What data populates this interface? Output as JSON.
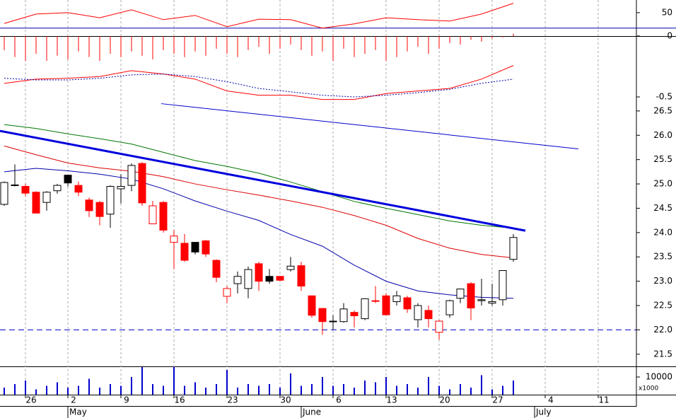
{
  "chart_data": {
    "type": "candlestick",
    "xticks": [
      {
        "value": 2,
        "label": "26"
      },
      {
        "value": 6,
        "label": "2"
      },
      {
        "value": 11,
        "label": "9"
      },
      {
        "value": 16,
        "label": "16"
      },
      {
        "value": 21,
        "label": "23"
      },
      {
        "value": 26,
        "label": "30"
      },
      {
        "value": 31,
        "label": "6"
      },
      {
        "value": 36,
        "label": "13"
      },
      {
        "value": 41,
        "label": "20"
      },
      {
        "value": 46,
        "label": "27"
      },
      {
        "value": 51,
        "label": "4"
      },
      {
        "value": 56,
        "label": "11"
      }
    ],
    "month_ticks": [
      {
        "value": 6,
        "label": "May"
      },
      {
        "value": 28,
        "label": "June"
      },
      {
        "value": 50,
        "label": "July"
      }
    ],
    "oscillator": {
      "ylim": [
        -59,
        77
      ],
      "yticks": [
        50,
        0
      ],
      "line": {
        "color": "#ff0000",
        "x": [
          0,
          3,
          6,
          9,
          12,
          15,
          18,
          21,
          24,
          27,
          30,
          33,
          36,
          39,
          42,
          45,
          48
        ],
        "values": [
          27,
          47,
          50,
          39,
          56,
          35,
          44,
          20,
          36,
          35,
          17,
          26,
          39,
          35,
          32,
          47,
          70
        ]
      },
      "level": {
        "value": 17,
        "color": "#0000aa"
      },
      "histogram": {
        "color": "#ff0000",
        "values": [
          -30,
          -45,
          -53,
          -38,
          -53,
          -42,
          -50,
          -33,
          -45,
          -53,
          -38,
          -45,
          -33,
          -42,
          -50,
          -30,
          -38,
          -45,
          -33,
          -42,
          -27,
          -38,
          -45,
          -30,
          -23,
          -38,
          -27,
          -18,
          -30,
          -42,
          -33,
          -53,
          -27,
          -45,
          -38,
          -30,
          -53,
          -45,
          -33,
          -23,
          -38,
          -27,
          -15,
          -18,
          -8,
          -12,
          -5,
          -3,
          5
        ]
      }
    },
    "macd": {
      "ylim": [
        -0.608,
        -0.108
      ],
      "yticks": [
        -0.5
      ],
      "lines": [
        {
          "color": "#ff0000",
          "style": "solid",
          "x": [
            0,
            3,
            6,
            9,
            12,
            15,
            18,
            21,
            24,
            27,
            30,
            33,
            36,
            39,
            42,
            45,
            48
          ],
          "values": [
            -0.34,
            -0.29,
            -0.28,
            -0.26,
            -0.19,
            -0.23,
            -0.29,
            -0.43,
            -0.48,
            -0.48,
            -0.53,
            -0.53,
            -0.46,
            -0.43,
            -0.4,
            -0.29,
            -0.13
          ]
        },
        {
          "color": "#0000aa",
          "style": "dotted",
          "x": [
            0,
            3,
            6,
            9,
            12,
            15,
            18,
            21,
            24,
            27,
            30,
            33,
            36,
            39,
            42,
            45,
            48
          ],
          "values": [
            -0.28,
            -0.3,
            -0.3,
            -0.28,
            -0.24,
            -0.23,
            -0.26,
            -0.32,
            -0.4,
            -0.44,
            -0.48,
            -0.5,
            -0.48,
            -0.45,
            -0.41,
            -0.34,
            -0.29
          ]
        }
      ]
    },
    "price": {
      "ylim": [
        21.25,
        26.6
      ],
      "yticks": [
        {
          "value": 26.5,
          "label": "26.5"
        },
        {
          "value": 26.0,
          "label": "26.0"
        },
        {
          "value": 25.5,
          "label": "25.5"
        },
        {
          "value": 25.0,
          "label": "25.0"
        },
        {
          "value": 24.5,
          "label": "24.5"
        },
        {
          "value": 24.0,
          "label": "24.0"
        },
        {
          "value": 23.5,
          "label": "23.5"
        },
        {
          "value": 23.0,
          "label": "23.0"
        },
        {
          "value": 22.5,
          "label": "22.5"
        },
        {
          "value": 22.0,
          "label": "22.0"
        },
        {
          "value": 21.5,
          "label": "21.5"
        }
      ],
      "candles": {
        "open": [
          24.58,
          24.97,
          24.95,
          24.83,
          24.62,
          24.86,
          25.02,
          24.97,
          24.67,
          24.62,
          24.38,
          24.9,
          24.97,
          25.42,
          24.55,
          24.62,
          23.93,
          23.78,
          23.6,
          23.83,
          23.43,
          22.85,
          22.95,
          22.85,
          23.36,
          23.0,
          23.1,
          23.24,
          23.32,
          22.7,
          22.44,
          22.17,
          22.17,
          22.36,
          22.23,
          22.6,
          22.7,
          22.58,
          22.66,
          22.21,
          22.4,
          22.18,
          22.31,
          22.65,
          22.95,
          22.6,
          22.55,
          22.62,
          23.45
        ],
        "high": [
          25.05,
          25.4,
          25.0,
          24.85,
          24.85,
          25.0,
          25.15,
          25.05,
          24.72,
          24.65,
          24.97,
          25.2,
          25.42,
          25.45,
          24.65,
          24.65,
          24.05,
          23.97,
          23.8,
          23.85,
          23.45,
          22.9,
          23.2,
          23.3,
          23.4,
          23.25,
          23.1,
          23.5,
          23.4,
          22.7,
          22.45,
          22.3,
          22.55,
          22.4,
          22.65,
          22.9,
          22.75,
          22.8,
          22.7,
          22.55,
          22.5,
          22.2,
          22.62,
          22.85,
          22.98,
          23.05,
          22.95,
          23.15,
          23.97
        ],
        "low": [
          24.55,
          24.95,
          24.75,
          24.4,
          24.45,
          24.8,
          24.95,
          24.75,
          24.32,
          24.15,
          24.1,
          24.6,
          24.85,
          24.55,
          24.18,
          24.0,
          23.25,
          23.4,
          23.55,
          23.5,
          22.98,
          22.55,
          22.75,
          22.65,
          22.8,
          22.95,
          23.0,
          23.2,
          22.8,
          22.25,
          21.9,
          22.0,
          22.15,
          22.05,
          22.2,
          22.55,
          22.3,
          22.5,
          22.35,
          22.05,
          22.05,
          21.8,
          22.25,
          22.55,
          22.2,
          22.5,
          22.5,
          22.5,
          23.4
        ],
        "close": [
          25.03,
          24.98,
          24.81,
          24.4,
          24.83,
          24.97,
          25.18,
          24.83,
          24.45,
          24.33,
          24.95,
          24.95,
          25.38,
          24.61,
          24.18,
          24.05,
          23.8,
          23.43,
          23.8,
          23.56,
          23.08,
          22.69,
          23.1,
          23.24,
          23.0,
          23.1,
          23.02,
          23.31,
          22.9,
          22.3,
          22.17,
          22.18,
          22.43,
          22.29,
          22.64,
          22.6,
          22.31,
          22.7,
          22.43,
          22.5,
          22.23,
          21.95,
          22.6,
          22.84,
          22.45,
          22.62,
          22.58,
          23.22,
          23.9
        ],
        "fill": [
          "#ffffff",
          "#ffffff",
          "#ff0000",
          "#ff0000",
          "#ffffff",
          "#ffffff",
          "#000000",
          "#ff0000",
          "#ff0000",
          "#ff0000",
          "#ffffff",
          "#ffffff",
          "#ffffff",
          "#ff0000",
          "#ffffff",
          "#ff0000",
          "#ffffff",
          "#ff0000",
          "#000000",
          "#ff0000",
          "#ff0000",
          "#ffffff",
          "#ffffff",
          "#ffffff",
          "#ff0000",
          "#000000",
          "#ff0000",
          "#ffffff",
          "#ff0000",
          "#ff0000",
          "#ff0000",
          "#ffffff",
          "#ffffff",
          "#ff0000",
          "#ffffff",
          "#ff0000",
          "#ff0000",
          "#ffffff",
          "#ff0000",
          "#ffffff",
          "#ff0000",
          "#ffffff",
          "#ffffff",
          "#ffffff",
          "#ff0000",
          "#ffffff",
          "#ffffff",
          "#ffffff",
          "#ffffff"
        ],
        "stroke": [
          "#000000",
          "#000000",
          "#ff0000",
          "#ff0000",
          "#000000",
          "#000000",
          "#000000",
          "#ff0000",
          "#ff0000",
          "#ff0000",
          "#000000",
          "#000000",
          "#000000",
          "#ff0000",
          "#ff0000",
          "#ff0000",
          "#ff0000",
          "#ff0000",
          "#000000",
          "#ff0000",
          "#ff0000",
          "#ff0000",
          "#000000",
          "#000000",
          "#ff0000",
          "#000000",
          "#ff0000",
          "#000000",
          "#ff0000",
          "#ff0000",
          "#ff0000",
          "#000000",
          "#000000",
          "#ff0000",
          "#000000",
          "#ff0000",
          "#ff0000",
          "#000000",
          "#ff0000",
          "#000000",
          "#ff0000",
          "#ff0000",
          "#000000",
          "#000000",
          "#ff0000",
          "#000000",
          "#000000",
          "#000000",
          "#000000"
        ]
      },
      "moving_averages": [
        {
          "color": "#dd0000",
          "x": [
            0,
            3,
            6,
            9,
            12,
            15,
            18,
            21,
            24,
            27,
            30,
            33,
            36,
            39,
            42,
            45,
            48
          ],
          "values": [
            25.78,
            25.6,
            25.43,
            25.33,
            25.26,
            25.15,
            25.0,
            24.88,
            24.77,
            24.65,
            24.52,
            24.35,
            24.15,
            23.88,
            23.68,
            23.55,
            23.48
          ]
        },
        {
          "color": "#007700",
          "x": [
            0,
            3,
            6,
            9,
            12,
            15,
            18,
            21,
            24,
            27,
            30,
            33,
            36,
            39,
            42,
            45,
            48
          ],
          "values": [
            26.22,
            26.14,
            26.03,
            25.93,
            25.82,
            25.65,
            25.48,
            25.36,
            25.22,
            25.04,
            24.84,
            24.64,
            24.5,
            24.37,
            24.24,
            24.15,
            24.09
          ]
        },
        {
          "color": "#0000aa",
          "x": [
            0,
            3,
            6,
            9,
            12,
            15,
            18,
            21,
            24,
            27,
            30,
            33,
            36,
            39,
            42,
            45,
            48
          ],
          "values": [
            25.25,
            25.32,
            25.27,
            25.2,
            25.1,
            24.9,
            24.65,
            24.44,
            24.25,
            23.96,
            23.72,
            23.33,
            23.0,
            22.8,
            22.72,
            22.67,
            22.65
          ]
        }
      ],
      "trendlines": [
        {
          "color": "#0000dd",
          "width": 3,
          "x": [
            -0.4,
            49.13
          ],
          "values": [
            26.09,
            24.04
          ]
        },
        {
          "color": "#0000cc",
          "width": 1,
          "x": [
            14.8,
            54.13
          ],
          "values": [
            26.65,
            25.72
          ]
        }
      ],
      "levels": [
        {
          "value": 22.0,
          "color": "#0000cc"
        }
      ]
    },
    "volume": {
      "ylim": [
        0,
        15600
      ],
      "yticks": [
        10000
      ],
      "unit": "x1000",
      "color": "#0000cc",
      "values": [
        4000,
        6000,
        8000,
        3000,
        5000,
        7000,
        4000,
        5000,
        9000,
        4000,
        6000,
        5000,
        10000,
        15600,
        6000,
        5000,
        15600,
        5000,
        7000,
        4000,
        6000,
        14000,
        4000,
        6000,
        5000,
        6000,
        4000,
        12000,
        5000,
        6000,
        10000,
        5000,
        6000,
        4000,
        8000,
        7000,
        10000,
        5000,
        6000,
        4000,
        10000,
        5000,
        3000,
        6000,
        4000,
        11000,
        3000,
        5000,
        8000
      ]
    }
  }
}
